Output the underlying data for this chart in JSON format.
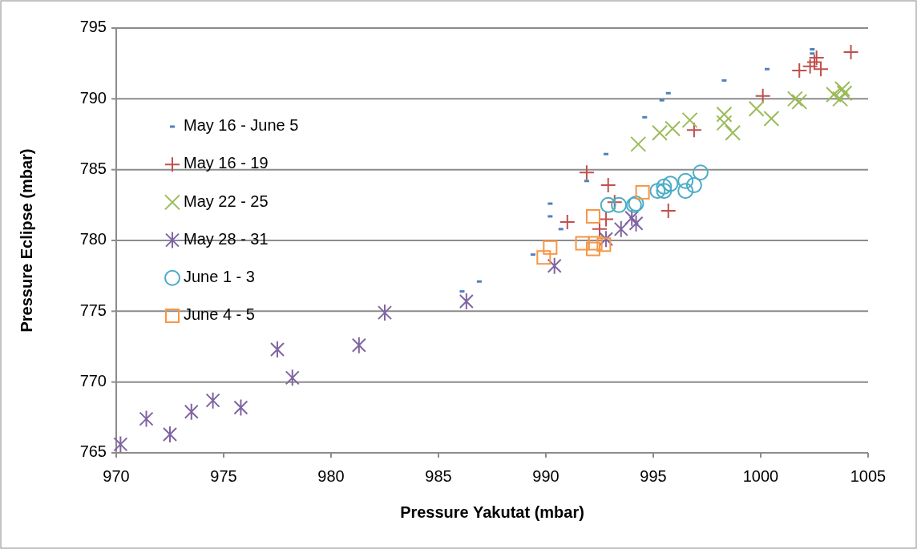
{
  "chart_data": {
    "type": "scatter",
    "xlabel": "Pressure Yakutat (mbar)",
    "ylabel": "Pressure Eclipse (mbar)",
    "xlim": [
      970,
      1005
    ],
    "xticks": [
      970,
      975,
      980,
      985,
      990,
      995,
      1000,
      1005
    ],
    "ylim": [
      765,
      795
    ],
    "yticks": [
      765,
      770,
      775,
      780,
      785,
      790,
      795
    ],
    "grid": "y",
    "legend": "top left",
    "series": [
      {
        "name": "May 16 - June 5",
        "color": "#4f81bd",
        "x": [
          1002.4,
          1002.4,
          1000.3,
          998.3,
          995.7,
          995.4,
          994.6,
          992.8,
          991.9,
          990.2,
          990.2,
          990.7,
          989.4,
          986.9,
          986.1
        ],
        "values": [
          793.5,
          793.2,
          792.1,
          791.3,
          790.4,
          789.9,
          788.7,
          786.1,
          784.2,
          782.6,
          781.7,
          780.8,
          779.0,
          777.1,
          776.4
        ]
      },
      {
        "name": "May 16 - 19",
        "color": "#c0504d",
        "marker": "cross",
        "x": [
          991.9,
          992.9,
          991.0,
          992.8,
          993.2,
          992.5,
          995.7,
          996.9,
          1000.1,
          1001.8,
          1002.3,
          1002.5,
          1002.6,
          1002.8,
          1004.2
        ],
        "values": [
          784.8,
          783.9,
          781.3,
          781.5,
          782.7,
          780.8,
          782.1,
          787.8,
          790.2,
          792.0,
          792.3,
          792.6,
          792.9,
          792.1,
          793.3
        ]
      },
      {
        "name": "May 22 - 25",
        "color": "#9bbb59",
        "marker": "x",
        "x": [
          994.3,
          995.3,
          995.9,
          996.7,
          998.3,
          998.3,
          998.7,
          999.8,
          1000.5,
          1001.6,
          1001.8,
          1003.4,
          1003.8,
          1003.7,
          1003.9
        ],
        "values": [
          786.8,
          787.6,
          787.9,
          788.5,
          788.9,
          788.3,
          787.6,
          789.3,
          788.6,
          790.0,
          789.8,
          790.3,
          790.7,
          790.0,
          790.4
        ]
      },
      {
        "name": "May 28 - 31",
        "color": "#8064a2",
        "x": [
          970.2,
          971.4,
          972.5,
          973.5,
          974.5,
          975.8,
          977.5,
          978.2,
          981.3,
          982.5,
          986.3,
          990.4,
          992.8,
          993.5,
          994.0,
          994.2
        ],
        "values": [
          765.6,
          767.4,
          766.3,
          767.9,
          768.7,
          768.2,
          772.3,
          770.3,
          772.6,
          774.9,
          775.7,
          778.2,
          780.1,
          780.8,
          781.6,
          781.2
        ]
      },
      {
        "name": "June 1 - 3",
        "color": "#4bacc6",
        "marker": "circle",
        "x": [
          992.9,
          993.4,
          994.1,
          994.2,
          995.2,
          995.5,
          995.5,
          995.8,
          996.5,
          996.5,
          996.9,
          997.2
        ],
        "values": [
          782.5,
          782.5,
          782.5,
          782.6,
          783.5,
          783.8,
          783.5,
          784.0,
          784.2,
          783.5,
          783.9,
          784.8
        ]
      },
      {
        "name": "June 4 - 5",
        "color": "#f79646",
        "marker": "square",
        "x": [
          994.5,
          992.2,
          990.2,
          989.9,
          991.7,
          992.2,
          992.3,
          992.7
        ],
        "values": [
          783.4,
          781.7,
          779.5,
          778.8,
          779.8,
          779.4,
          779.8,
          779.7
        ]
      }
    ]
  }
}
